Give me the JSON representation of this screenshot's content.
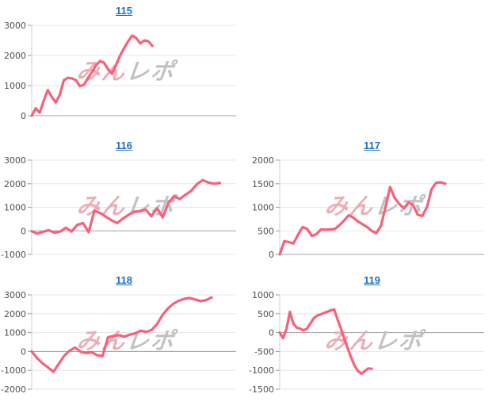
{
  "watermark": {
    "pink": "みん",
    "gray": "レポ"
  },
  "style": {
    "line_color": "#f9607a",
    "grid_line": "#e7e7e7",
    "zero_line": "#a0a0a0",
    "axis_line": "#cccccc",
    "tick_mark": "#999999",
    "tick_label": "#4d4d4d",
    "title_link": "#1d70c2",
    "wm_pink": "#edacb5",
    "wm_gray": "#c2c2c2"
  },
  "chart_data": [
    {
      "type": "line",
      "title": "115",
      "xlabel": "",
      "ylabel": "",
      "ylim": [
        0,
        3000
      ],
      "yticks": [
        3000,
        2000,
        1000,
        0
      ],
      "grid": true,
      "legend": "none",
      "x_end_fraction": 0.59,
      "values": [
        0,
        250,
        100,
        500,
        850,
        620,
        440,
        700,
        1180,
        1260,
        1240,
        1180,
        980,
        1030,
        1250,
        1450,
        1680,
        1815,
        1760,
        1540,
        1390,
        1700,
        2000,
        2250,
        2470,
        2660,
        2580,
        2400,
        2500,
        2470,
        2320
      ]
    },
    {
      "type": "line",
      "title": "116",
      "xlabel": "",
      "ylabel": "",
      "ylim": [
        -1000,
        3000
      ],
      "yticks": [
        3000,
        2000,
        1000,
        0,
        -1000
      ],
      "grid": true,
      "legend": "none",
      "x_end_fraction": 0.92,
      "values": [
        -20,
        -120,
        -40,
        30,
        -80,
        -30,
        130,
        -30,
        250,
        330,
        -60,
        850,
        760,
        600,
        450,
        330,
        520,
        680,
        820,
        830,
        900,
        620,
        960,
        570,
        1190,
        1470,
        1350,
        1530,
        1700,
        1980,
        2150,
        2050,
        2000,
        2030
      ]
    },
    {
      "type": "line",
      "title": "117",
      "xlabel": "",
      "ylabel": "",
      "ylim": [
        0,
        2000
      ],
      "yticks": [
        2000,
        1500,
        1000,
        500,
        0
      ],
      "grid": true,
      "legend": "none",
      "x_end_fraction": 0.81,
      "values": [
        0,
        280,
        260,
        230,
        420,
        580,
        540,
        390,
        430,
        530,
        525,
        530,
        540,
        620,
        720,
        830,
        780,
        700,
        640,
        580,
        500,
        450,
        600,
        1000,
        1430,
        1200,
        1070,
        980,
        1100,
        1050,
        840,
        815,
        1000,
        1380,
        1520,
        1530,
        1500
      ]
    },
    {
      "type": "line",
      "title": "118",
      "xlabel": "",
      "ylabel": "",
      "ylim": [
        -2000,
        3000
      ],
      "yticks": [
        3000,
        2000,
        1000,
        0,
        -1000,
        -2000
      ],
      "grid": true,
      "legend": "none",
      "x_end_fraction": 0.88,
      "values": [
        0,
        -360,
        -640,
        -850,
        -1080,
        -640,
        -220,
        50,
        200,
        -20,
        -90,
        -50,
        -200,
        -250,
        750,
        820,
        860,
        780,
        890,
        960,
        1100,
        1030,
        1140,
        1440,
        1930,
        2280,
        2530,
        2690,
        2790,
        2830,
        2750,
        2670,
        2720,
        2860
      ]
    },
    {
      "type": "line",
      "title": "119",
      "xlabel": "",
      "ylabel": "",
      "ylim": [
        -1500,
        1000
      ],
      "yticks": [
        1000,
        500,
        0,
        -500,
        -1000,
        -1500
      ],
      "grid": true,
      "legend": "none",
      "x_end_fraction": 0.45,
      "values": [
        0,
        -150,
        100,
        550,
        240,
        130,
        100,
        60,
        100,
        240,
        380,
        450,
        480,
        520,
        550,
        590,
        610,
        340,
        100,
        -180,
        -430,
        -670,
        -880,
        -1020,
        -1090,
        -1020,
        -950,
        -960
      ]
    }
  ]
}
